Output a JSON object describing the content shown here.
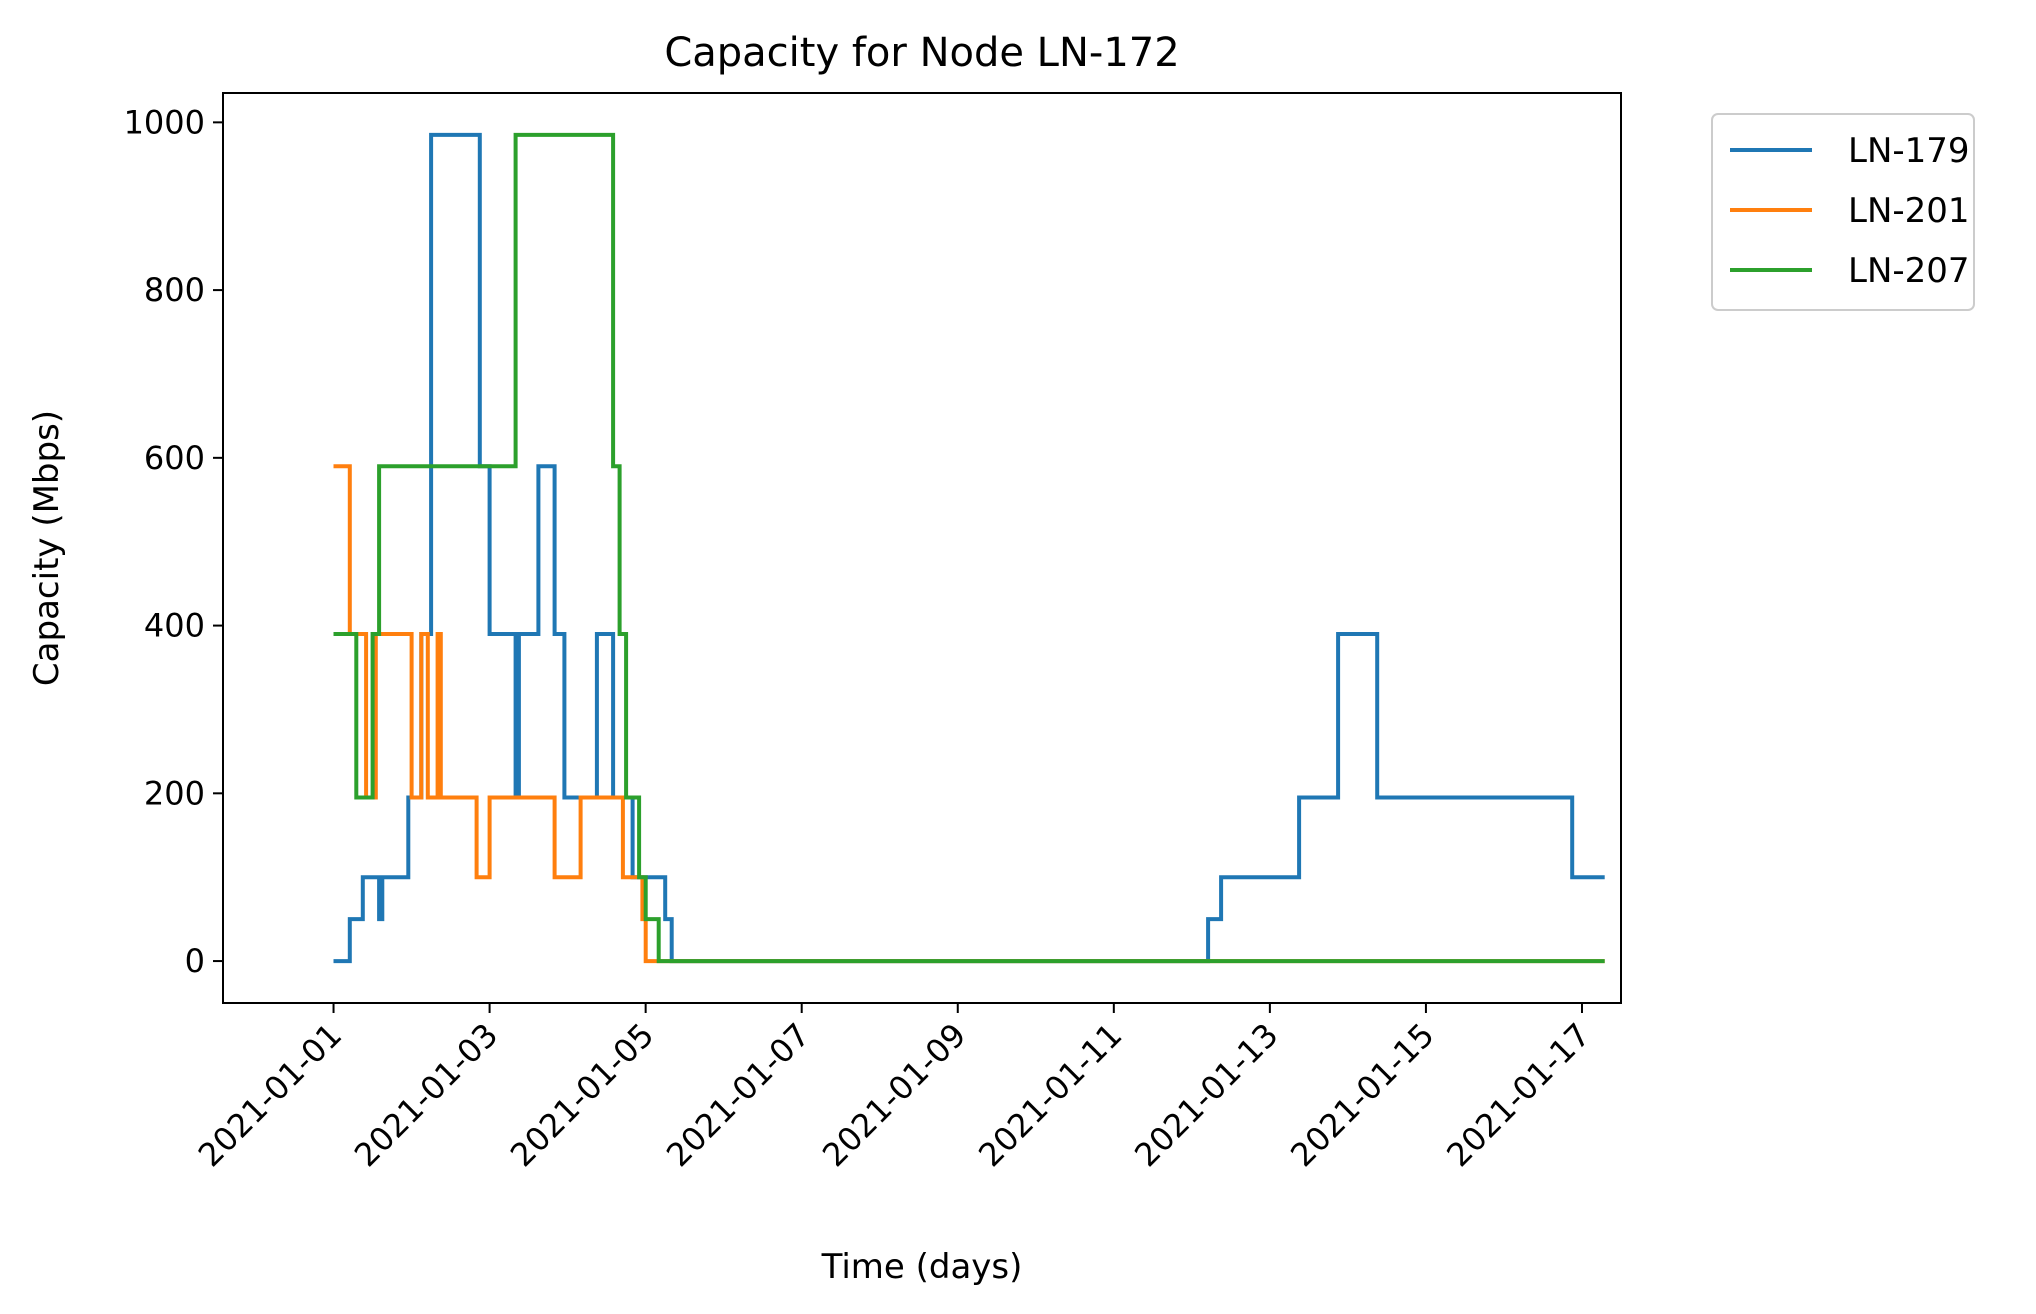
{
  "chart_data": {
    "type": "line",
    "step": "post",
    "title": "Capacity for Node LN-172",
    "xlabel": "Time (days)",
    "ylabel": "Capacity (Mbps)",
    "xlim": [
      "2020-12-30T14:00",
      "2021-01-17T12:00"
    ],
    "ylim": [
      -50,
      1035
    ],
    "xticks": [
      "2021-01-01",
      "2021-01-03",
      "2021-01-05",
      "2021-01-07",
      "2021-01-09",
      "2021-01-11",
      "2021-01-13",
      "2021-01-15",
      "2021-01-17"
    ],
    "yticks": [
      0,
      200,
      400,
      600,
      800,
      1000
    ],
    "legend_position": "outside-top-right",
    "grid": false,
    "series": [
      {
        "name": "LN-179",
        "color": "#1f77b4",
        "points": [
          [
            "2021-01-01T00:00",
            0
          ],
          [
            "2021-01-01T05:00",
            50
          ],
          [
            "2021-01-01T09:00",
            100
          ],
          [
            "2021-01-01T14:00",
            50
          ],
          [
            "2021-01-01T15:00",
            100
          ],
          [
            "2021-01-01T23:00",
            195
          ],
          [
            "2021-01-02T03:00",
            390
          ],
          [
            "2021-01-02T06:00",
            985
          ],
          [
            "2021-01-02T21:00",
            590
          ],
          [
            "2021-01-03T00:00",
            390
          ],
          [
            "2021-01-03T08:00",
            195
          ],
          [
            "2021-01-03T09:00",
            390
          ],
          [
            "2021-01-03T15:00",
            590
          ],
          [
            "2021-01-03T20:00",
            390
          ],
          [
            "2021-01-03T23:00",
            195
          ],
          [
            "2021-01-04T09:00",
            390
          ],
          [
            "2021-01-04T14:00",
            195
          ],
          [
            "2021-01-04T20:00",
            100
          ],
          [
            "2021-01-05T06:00",
            50
          ],
          [
            "2021-01-05T08:00",
            0
          ],
          [
            "2021-01-12T05:00",
            50
          ],
          [
            "2021-01-12T09:00",
            100
          ],
          [
            "2021-01-13T09:00",
            195
          ],
          [
            "2021-01-13T21:00",
            390
          ],
          [
            "2021-01-14T09:00",
            195
          ],
          [
            "2021-01-16T21:00",
            100
          ],
          [
            "2021-01-17T07:00",
            100
          ]
        ]
      },
      {
        "name": "LN-201",
        "color": "#ff7f0e",
        "points": [
          [
            "2021-01-01T00:00",
            590
          ],
          [
            "2021-01-01T05:00",
            390
          ],
          [
            "2021-01-01T10:00",
            195
          ],
          [
            "2021-01-01T13:00",
            390
          ],
          [
            "2021-01-01T22:00",
            390
          ],
          [
            "2021-01-02T00:00",
            195
          ],
          [
            "2021-01-02T03:00",
            390
          ],
          [
            "2021-01-02T05:00",
            195
          ],
          [
            "2021-01-02T08:00",
            390
          ],
          [
            "2021-01-02T09:00",
            195
          ],
          [
            "2021-01-02T20:00",
            100
          ],
          [
            "2021-01-03T00:00",
            195
          ],
          [
            "2021-01-03T20:00",
            100
          ],
          [
            "2021-01-04T04:00",
            195
          ],
          [
            "2021-01-04T17:00",
            100
          ],
          [
            "2021-01-04T23:00",
            50
          ],
          [
            "2021-01-05T00:00",
            0
          ],
          [
            "2021-01-17T07:00",
            0
          ]
        ]
      },
      {
        "name": "LN-207",
        "color": "#2ca02c",
        "points": [
          [
            "2021-01-01T00:00",
            390
          ],
          [
            "2021-01-01T07:00",
            195
          ],
          [
            "2021-01-01T12:00",
            390
          ],
          [
            "2021-01-01T14:00",
            590
          ],
          [
            "2021-01-03T08:00",
            985
          ],
          [
            "2021-01-04T14:00",
            590
          ],
          [
            "2021-01-04T16:00",
            390
          ],
          [
            "2021-01-04T18:00",
            195
          ],
          [
            "2021-01-04T22:00",
            100
          ],
          [
            "2021-01-05T00:00",
            50
          ],
          [
            "2021-01-05T04:00",
            0
          ],
          [
            "2021-01-17T07:00",
            0
          ]
        ]
      }
    ]
  }
}
